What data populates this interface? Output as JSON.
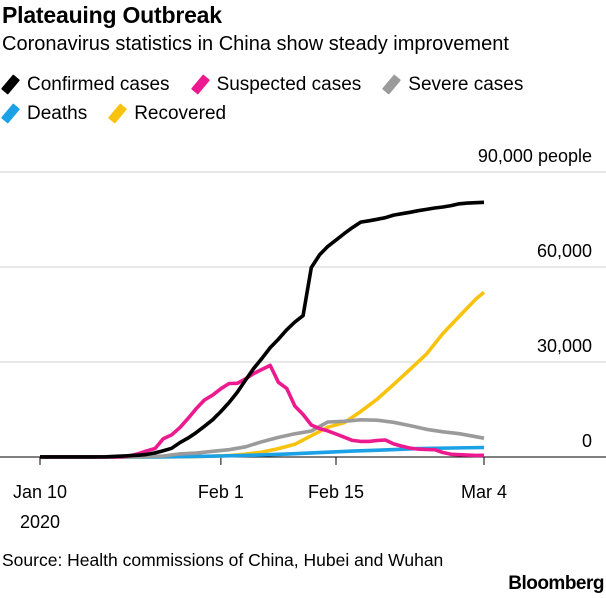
{
  "header": {
    "title": "Plateauing Outbreak",
    "subtitle": "Coronavirus statistics in China show steady improvement"
  },
  "legend": [
    {
      "label": "Confirmed cases",
      "color": "#000000"
    },
    {
      "label": "Suspected cases",
      "color": "#ec1a8e"
    },
    {
      "label": "Severe cases",
      "color": "#9b9b9b"
    },
    {
      "label": "Deaths",
      "color": "#1aa1e6"
    },
    {
      "label": "Recovered",
      "color": "#f7c30e"
    }
  ],
  "chart_data": {
    "type": "line",
    "title": "Plateauing Outbreak",
    "subtitle": "Coronavirus statistics in China show steady improvement",
    "xlabel": "",
    "ylabel": "",
    "y_unit_label": "90,000 people",
    "ylim": [
      0,
      90000
    ],
    "xlim": [
      "2020-01-10",
      "2020-03-04"
    ],
    "yticks": [
      {
        "value": 0,
        "label": "0"
      },
      {
        "value": 30000,
        "label": "30,000"
      },
      {
        "value": 60000,
        "label": "60,000"
      },
      {
        "value": 90000,
        "label": "90,000 people"
      }
    ],
    "xticks": [
      {
        "date": "2020-01-10",
        "label": "Jan 10",
        "sublabel": "2020"
      },
      {
        "date": "2020-02-01",
        "label": "Feb 1"
      },
      {
        "date": "2020-02-15",
        "label": "Feb 15"
      },
      {
        "date": "2020-03-04",
        "label": "Mar 4"
      }
    ],
    "grid": "horizontal",
    "legend_position": "top",
    "series": [
      {
        "name": "Confirmed cases",
        "color": "#000000",
        "points": [
          [
            "2020-01-10",
            41
          ],
          [
            "2020-01-16",
            45
          ],
          [
            "2020-01-18",
            62
          ],
          [
            "2020-01-20",
            291
          ],
          [
            "2020-01-21",
            440
          ],
          [
            "2020-01-22",
            571
          ],
          [
            "2020-01-23",
            830
          ],
          [
            "2020-01-24",
            1287
          ],
          [
            "2020-01-25",
            1975
          ],
          [
            "2020-01-26",
            2744
          ],
          [
            "2020-01-27",
            4515
          ],
          [
            "2020-01-28",
            5974
          ],
          [
            "2020-01-29",
            7711
          ],
          [
            "2020-01-30",
            9692
          ],
          [
            "2020-01-31",
            11791
          ],
          [
            "2020-02-01",
            14380
          ],
          [
            "2020-02-02",
            17205
          ],
          [
            "2020-02-03",
            20438
          ],
          [
            "2020-02-04",
            24324
          ],
          [
            "2020-02-05",
            28018
          ],
          [
            "2020-02-06",
            31161
          ],
          [
            "2020-02-07",
            34546
          ],
          [
            "2020-02-08",
            37198
          ],
          [
            "2020-02-09",
            40171
          ],
          [
            "2020-02-10",
            42638
          ],
          [
            "2020-02-11",
            44653
          ],
          [
            "2020-02-12",
            59804
          ],
          [
            "2020-02-13",
            63851
          ],
          [
            "2020-02-14",
            66492
          ],
          [
            "2020-02-15",
            68500
          ],
          [
            "2020-02-16",
            70548
          ],
          [
            "2020-02-17",
            72436
          ],
          [
            "2020-02-18",
            74185
          ],
          [
            "2020-02-19",
            74576
          ],
          [
            "2020-02-20",
            75077
          ],
          [
            "2020-02-21",
            75567
          ],
          [
            "2020-02-22",
            76392
          ],
          [
            "2020-02-23",
            76846
          ],
          [
            "2020-02-24",
            77262
          ],
          [
            "2020-02-25",
            77780
          ],
          [
            "2020-02-26",
            78195
          ],
          [
            "2020-02-27",
            78630
          ],
          [
            "2020-02-28",
            78959
          ],
          [
            "2020-02-29",
            79389
          ],
          [
            "2020-03-01",
            79968
          ],
          [
            "2020-03-02",
            80174
          ],
          [
            "2020-03-03",
            80303
          ],
          [
            "2020-03-04",
            80420
          ]
        ]
      },
      {
        "name": "Suspected cases",
        "color": "#ec1a8e",
        "points": [
          [
            "2020-01-10",
            0
          ],
          [
            "2020-01-19",
            0
          ],
          [
            "2020-01-20",
            54
          ],
          [
            "2020-01-21",
            393
          ],
          [
            "2020-01-22",
            1072
          ],
          [
            "2020-01-23",
            1965
          ],
          [
            "2020-01-24",
            2684
          ],
          [
            "2020-01-25",
            5794
          ],
          [
            "2020-01-26",
            6973
          ],
          [
            "2020-01-27",
            9239
          ],
          [
            "2020-01-28",
            12167
          ],
          [
            "2020-01-29",
            15238
          ],
          [
            "2020-01-30",
            17988
          ],
          [
            "2020-01-31",
            19544
          ],
          [
            "2020-02-01",
            21558
          ],
          [
            "2020-02-02",
            23214
          ],
          [
            "2020-02-03",
            23260
          ],
          [
            "2020-02-04",
            24702
          ],
          [
            "2020-02-05",
            26359
          ],
          [
            "2020-02-06",
            27657
          ],
          [
            "2020-02-07",
            28942
          ],
          [
            "2020-02-08",
            23589
          ],
          [
            "2020-02-09",
            21675
          ],
          [
            "2020-02-10",
            16067
          ],
          [
            "2020-02-11",
            13435
          ],
          [
            "2020-02-12",
            10109
          ],
          [
            "2020-02-13",
            8969
          ],
          [
            "2020-02-14",
            8228
          ],
          [
            "2020-02-15",
            7264
          ],
          [
            "2020-02-16",
            6242
          ],
          [
            "2020-02-17",
            5248
          ],
          [
            "2020-02-18",
            4922
          ],
          [
            "2020-02-19",
            4922
          ],
          [
            "2020-02-20",
            5206
          ],
          [
            "2020-02-21",
            5365
          ],
          [
            "2020-02-22",
            4148
          ],
          [
            "2020-02-23",
            3434
          ],
          [
            "2020-02-24",
            2824
          ],
          [
            "2020-02-25",
            2491
          ],
          [
            "2020-02-26",
            2358
          ],
          [
            "2020-02-27",
            2308
          ],
          [
            "2020-02-28",
            1418
          ],
          [
            "2020-02-29",
            851
          ],
          [
            "2020-03-01",
            715
          ],
          [
            "2020-03-02",
            587
          ],
          [
            "2020-03-03",
            520
          ],
          [
            "2020-03-04",
            522
          ]
        ]
      },
      {
        "name": "Severe cases",
        "color": "#9b9b9b",
        "points": [
          [
            "2020-01-10",
            0
          ],
          [
            "2020-01-19",
            0
          ],
          [
            "2020-01-21",
            102
          ],
          [
            "2020-01-23",
            177
          ],
          [
            "2020-01-25",
            324
          ],
          [
            "2020-01-27",
            976
          ],
          [
            "2020-01-29",
            1239
          ],
          [
            "2020-01-31",
            1795
          ],
          [
            "2020-02-02",
            2296
          ],
          [
            "2020-02-04",
            3219
          ],
          [
            "2020-02-06",
            4821
          ],
          [
            "2020-02-08",
            6188
          ],
          [
            "2020-02-10",
            7333
          ],
          [
            "2020-02-12",
            8204
          ],
          [
            "2020-02-14",
            11053
          ],
          [
            "2020-02-16",
            11272
          ],
          [
            "2020-02-18",
            11741
          ],
          [
            "2020-02-20",
            11633
          ],
          [
            "2020-02-22",
            10968
          ],
          [
            "2020-02-24",
            9915
          ],
          [
            "2020-02-26",
            8752
          ],
          [
            "2020-02-28",
            7952
          ],
          [
            "2020-03-01",
            7365
          ],
          [
            "2020-03-03",
            6416
          ],
          [
            "2020-03-04",
            5952
          ]
        ]
      },
      {
        "name": "Deaths",
        "color": "#1aa1e6",
        "points": [
          [
            "2020-01-10",
            1
          ],
          [
            "2020-01-20",
            6
          ],
          [
            "2020-01-24",
            41
          ],
          [
            "2020-01-28",
            132
          ],
          [
            "2020-02-01",
            304
          ],
          [
            "2020-02-05",
            565
          ],
          [
            "2020-02-09",
            910
          ],
          [
            "2020-02-13",
            1380
          ],
          [
            "2020-02-17",
            1868
          ],
          [
            "2020-02-21",
            2236
          ],
          [
            "2020-02-25",
            2663
          ],
          [
            "2020-02-29",
            2835
          ],
          [
            "2020-03-04",
            3012
          ]
        ]
      },
      {
        "name": "Recovered",
        "color": "#f7c30e",
        "points": [
          [
            "2020-01-10",
            0
          ],
          [
            "2020-01-22",
            28
          ],
          [
            "2020-01-25",
            49
          ],
          [
            "2020-01-28",
            103
          ],
          [
            "2020-01-31",
            243
          ],
          [
            "2020-02-02",
            475
          ],
          [
            "2020-02-04",
            892
          ],
          [
            "2020-02-06",
            1540
          ],
          [
            "2020-02-08",
            2649
          ],
          [
            "2020-02-10",
            3996
          ],
          [
            "2020-02-12",
            6723
          ],
          [
            "2020-02-14",
            9419
          ],
          [
            "2020-02-16",
            10844
          ],
          [
            "2020-02-18",
            14376
          ],
          [
            "2020-02-20",
            18264
          ],
          [
            "2020-02-22",
            22888
          ],
          [
            "2020-02-24",
            27650
          ],
          [
            "2020-02-26",
            32495
          ],
          [
            "2020-02-28",
            39002
          ],
          [
            "2020-03-01",
            44462
          ],
          [
            "2020-03-03",
            49856
          ],
          [
            "2020-03-04",
            52045
          ]
        ]
      }
    ]
  },
  "footer": {
    "source": "Source: Health commissions of China, Hubei and Wuhan",
    "brand": "Bloomberg"
  }
}
